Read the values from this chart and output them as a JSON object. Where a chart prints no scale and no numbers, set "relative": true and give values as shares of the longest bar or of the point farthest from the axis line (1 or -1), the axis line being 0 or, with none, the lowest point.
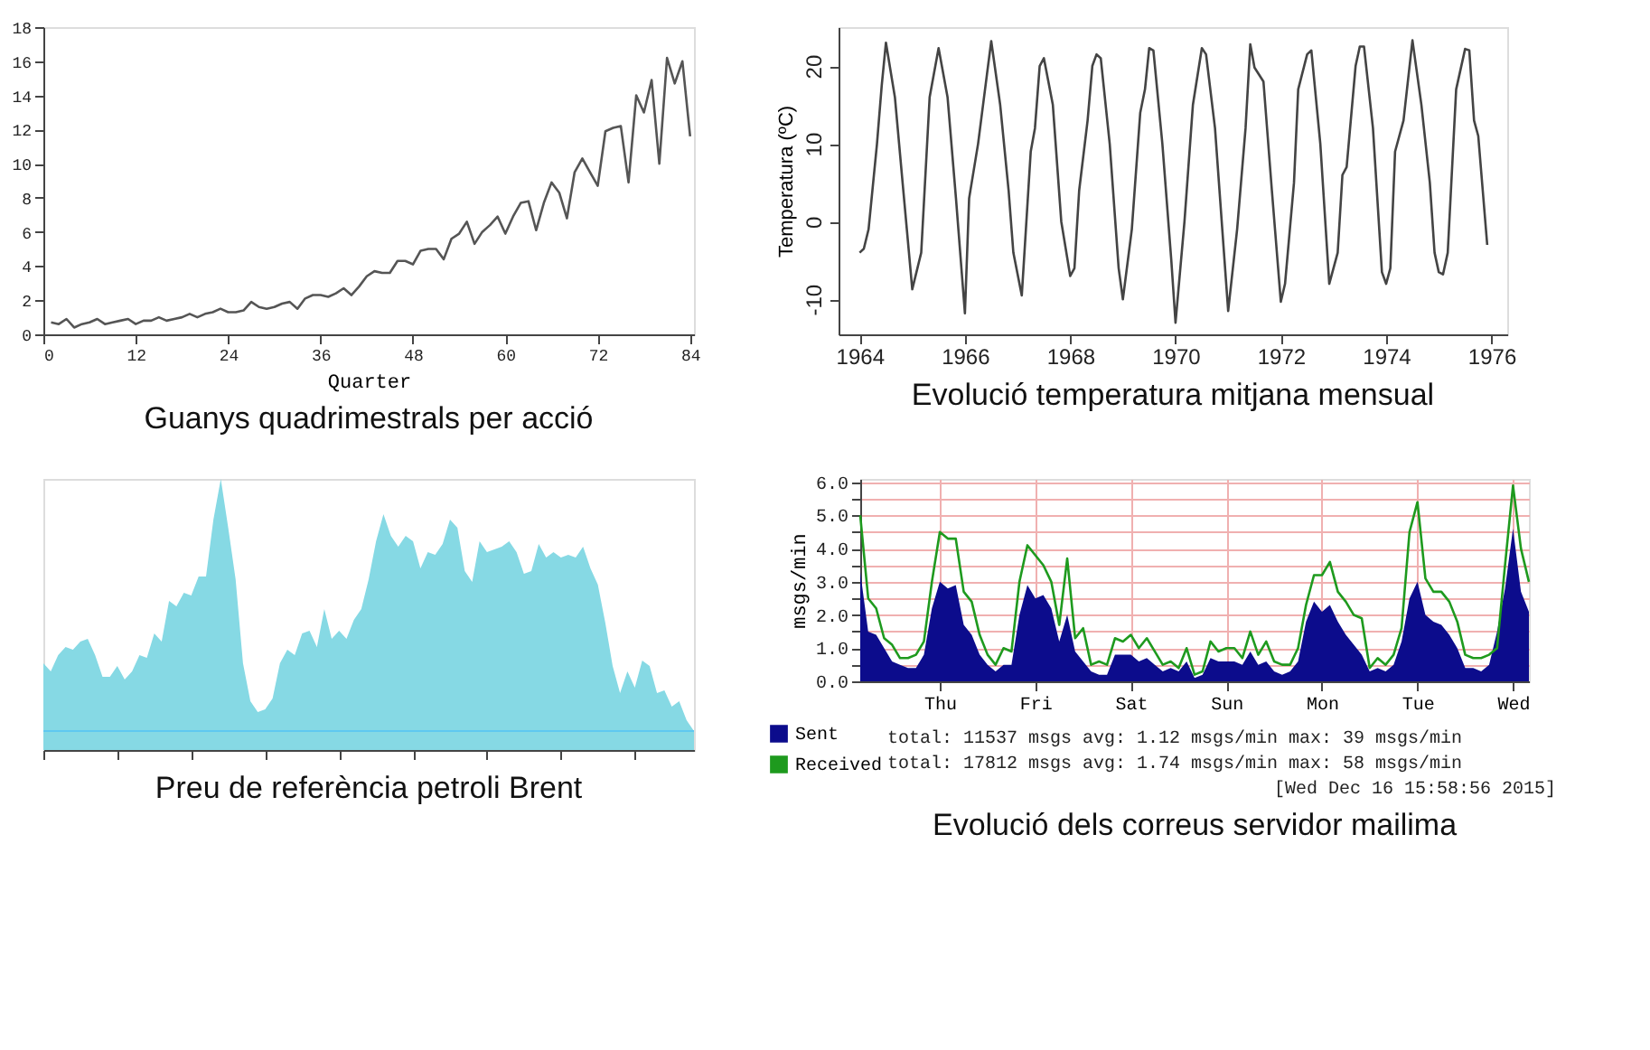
{
  "chart_data": [
    {
      "type": "line",
      "title": "Guanys quadrimestrals per acció",
      "xlabel": "Quarter",
      "x": [
        1,
        2,
        3,
        4,
        5,
        6,
        7,
        8,
        9,
        10,
        11,
        12,
        13,
        14,
        15,
        16,
        17,
        18,
        19,
        20,
        21,
        22,
        23,
        24,
        25,
        26,
        27,
        28,
        29,
        30,
        31,
        32,
        33,
        34,
        35,
        36,
        37,
        38,
        39,
        40,
        41,
        42,
        43,
        44,
        45,
        46,
        47,
        48,
        49,
        50,
        51,
        52,
        53,
        54,
        55,
        56,
        57,
        58,
        59,
        60,
        61,
        62,
        63,
        64,
        65,
        66,
        67,
        68,
        69,
        70,
        71,
        72,
        73,
        74,
        75,
        76,
        77,
        78,
        79,
        80,
        81,
        82,
        83,
        84
      ],
      "series": [
        {
          "color": "#555555",
          "values": [
            0.7,
            0.6,
            0.9,
            0.4,
            0.6,
            0.7,
            0.9,
            0.6,
            0.7,
            0.8,
            0.9,
            0.6,
            0.8,
            0.8,
            1.0,
            0.8,
            0.9,
            1.0,
            1.2,
            1.0,
            1.2,
            1.3,
            1.5,
            1.3,
            1.3,
            1.4,
            1.9,
            1.6,
            1.5,
            1.6,
            1.8,
            1.9,
            1.5,
            2.1,
            2.3,
            2.3,
            2.2,
            2.4,
            2.7,
            2.3,
            2.8,
            3.4,
            3.7,
            3.6,
            3.6,
            4.3,
            4.3,
            4.1,
            4.9,
            5.0,
            5.0,
            4.4,
            5.6,
            5.9,
            6.6,
            5.3,
            6.0,
            6.4,
            6.9,
            5.9,
            6.9,
            7.7,
            7.8,
            6.1,
            7.7,
            8.9,
            8.3,
            6.8,
            9.5,
            10.3,
            9.5,
            8.7,
            11.9,
            12.1,
            12.2,
            8.9,
            14.0,
            13.0,
            14.9,
            10.0,
            16.2,
            14.7,
            16.0,
            11.6
          ]
        }
      ],
      "xlim": [
        0,
        84.5
      ],
      "xticks": [
        0,
        12,
        24,
        36,
        48,
        60,
        72,
        84
      ],
      "ylim": [
        0,
        18
      ],
      "yticks": [
        0,
        2,
        4,
        6,
        8,
        10,
        12,
        14,
        16,
        18
      ]
    },
    {
      "type": "line",
      "title": "Evolució temperatura mitjana mensual",
      "ylabel": "Temperatura (ºC)",
      "x": [
        1964,
        1964.08,
        1964.17,
        1964.33,
        1964.42,
        1964.5,
        1964.67,
        1964.83,
        1965,
        1965.17,
        1965.33,
        1965.5,
        1965.67,
        1965.83,
        1966,
        1966.08,
        1966.25,
        1966.42,
        1966.5,
        1966.67,
        1966.83,
        1966.92,
        1967.08,
        1967.25,
        1967.33,
        1967.42,
        1967.5,
        1967.67,
        1967.83,
        1968,
        1968.08,
        1968.17,
        1968.33,
        1968.42,
        1968.5,
        1968.58,
        1968.75,
        1968.92,
        1969,
        1969.17,
        1969.33,
        1969.42,
        1969.5,
        1969.58,
        1969.75,
        1969.92,
        1970,
        1970.17,
        1970.33,
        1970.5,
        1970.58,
        1970.75,
        1970.92,
        1971,
        1971.17,
        1971.33,
        1971.42,
        1971.5,
        1971.67,
        1971.83,
        1972,
        1972.08,
        1972.25,
        1972.33,
        1972.5,
        1972.58,
        1972.75,
        1972.92,
        1973,
        1973.08,
        1973.17,
        1973.25,
        1973.42,
        1973.5,
        1973.58,
        1973.75,
        1973.92,
        1974,
        1974.08,
        1974.17,
        1974.33,
        1974.5,
        1974.67,
        1974.83,
        1974.92,
        1975,
        1975.08,
        1975.17,
        1975.33,
        1975.5,
        1975.58,
        1975.67,
        1975.75,
        1975.92
      ],
      "series": [
        {
          "color": "#444444",
          "values": [
            -4,
            -3.5,
            -1,
            10,
            17.5,
            23,
            16,
            4,
            -8.7,
            -4,
            16,
            22.3,
            16,
            3,
            -11.8,
            3,
            10,
            19,
            23.2,
            15,
            4,
            -4,
            -9.5,
            9,
            12,
            20,
            21,
            15,
            0,
            -7,
            -6,
            4,
            13,
            20,
            21.5,
            21,
            10,
            -6,
            -10,
            -1,
            14,
            17,
            22.3,
            22,
            10,
            -5,
            -13,
            0,
            15,
            22.3,
            21.5,
            12,
            -4,
            -11.5,
            -1,
            12,
            22.8,
            19.8,
            18,
            4,
            -10.3,
            -8,
            5,
            17,
            21.5,
            22,
            10,
            -8,
            -6,
            -4,
            6,
            7,
            20,
            22.5,
            22.5,
            12,
            -6.5,
            -8,
            -6,
            9,
            13,
            23.3,
            15,
            5,
            -4,
            -6.5,
            -6.8,
            -4,
            17,
            22.2,
            22,
            13,
            11,
            -3
          ]
        }
      ],
      "xlim": [
        1963.6,
        1976.3
      ],
      "xticks": [
        1964,
        1966,
        1968,
        1970,
        1972,
        1974,
        1976
      ],
      "ylim": [
        -14.5,
        25
      ],
      "yticks": [
        -10,
        0,
        10,
        20
      ]
    },
    {
      "type": "area",
      "title": "Preu de referència petroli Brent",
      "relative": true,
      "tick_labels": false,
      "categories": [
        null,
        null,
        null,
        null,
        null,
        null,
        null,
        null,
        null,
        null,
        null,
        null,
        null,
        null,
        null,
        null,
        null,
        null,
        null,
        null,
        null,
        null,
        null,
        null,
        null,
        null,
        null,
        null,
        null,
        null,
        null,
        null,
        null,
        null,
        null,
        null,
        null,
        null,
        null,
        null,
        null,
        null,
        null,
        null,
        null,
        null,
        null,
        null,
        null,
        null,
        null,
        null,
        null,
        null,
        null,
        null,
        null,
        null,
        null,
        null,
        null,
        null,
        null,
        null,
        null,
        null,
        null,
        null,
        null,
        null,
        null,
        null,
        null,
        null,
        null,
        null,
        null,
        null,
        null,
        null,
        null,
        null,
        null,
        null,
        null,
        null,
        null,
        null,
        null
      ],
      "series": [
        {
          "color": "#86d9e4",
          "values": [
            0.32,
            0.29,
            0.35,
            0.38,
            0.37,
            0.4,
            0.41,
            0.35,
            0.27,
            0.27,
            0.31,
            0.26,
            0.29,
            0.35,
            0.34,
            0.43,
            0.4,
            0.55,
            0.53,
            0.58,
            0.57,
            0.64,
            0.64,
            0.85,
            1.0,
            0.82,
            0.63,
            0.32,
            0.18,
            0.14,
            0.15,
            0.19,
            0.32,
            0.37,
            0.35,
            0.43,
            0.44,
            0.38,
            0.52,
            0.41,
            0.44,
            0.41,
            0.48,
            0.52,
            0.63,
            0.77,
            0.87,
            0.79,
            0.75,
            0.79,
            0.77,
            0.67,
            0.73,
            0.72,
            0.76,
            0.85,
            0.82,
            0.66,
            0.62,
            0.77,
            0.73,
            0.74,
            0.75,
            0.77,
            0.73,
            0.65,
            0.66,
            0.76,
            0.71,
            0.73,
            0.71,
            0.72,
            0.71,
            0.75,
            0.67,
            0.61,
            0.47,
            0.31,
            0.21,
            0.29,
            0.23,
            0.33,
            0.31,
            0.21,
            0.22,
            0.16,
            0.18,
            0.11,
            0.07
          ]
        }
      ],
      "ref_lines": [
        {
          "axis": "y",
          "value": 0.07,
          "color": "#5fc8f0"
        }
      ]
    },
    {
      "type": "area",
      "title": "Evolució dels correus servidor mailima",
      "ylabel": "msgs/min",
      "legend": "bottom",
      "grid": true,
      "categories": [
        null,
        null,
        null,
        null,
        null,
        null,
        null,
        null,
        null,
        null,
        "Thu",
        null,
        null,
        null,
        null,
        null,
        null,
        null,
        null,
        null,
        null,
        null,
        "Fri",
        null,
        null,
        null,
        null,
        null,
        null,
        null,
        null,
        null,
        null,
        null,
        "Sat",
        null,
        null,
        null,
        null,
        null,
        null,
        null,
        null,
        null,
        null,
        null,
        "Sun",
        null,
        null,
        null,
        null,
        null,
        null,
        null,
        null,
        null,
        null,
        null,
        "Mon",
        null,
        null,
        null,
        null,
        null,
        null,
        null,
        null,
        null,
        null,
        null,
        "Tue",
        null,
        null,
        null,
        null,
        null,
        null,
        null,
        null,
        null,
        null,
        null,
        "Wed",
        null,
        null
      ],
      "series": [
        {
          "name": "Sent",
          "type": "area",
          "color": "#0c0c8c",
          "values": [
            3.3,
            1.5,
            1.4,
            1.0,
            0.6,
            0.5,
            0.4,
            0.4,
            0.8,
            2.2,
            3.0,
            2.8,
            2.9,
            1.7,
            1.4,
            0.8,
            0.5,
            0.3,
            0.5,
            0.5,
            2.0,
            2.9,
            2.5,
            2.6,
            2.2,
            1.2,
            2.0,
            0.9,
            0.6,
            0.3,
            0.2,
            0.2,
            0.8,
            0.8,
            0.8,
            0.6,
            0.7,
            0.5,
            0.3,
            0.4,
            0.3,
            0.6,
            0.1,
            0.2,
            0.7,
            0.6,
            0.6,
            0.6,
            0.5,
            0.9,
            0.5,
            0.6,
            0.3,
            0.2,
            0.3,
            0.6,
            1.8,
            2.4,
            2.1,
            2.3,
            1.8,
            1.4,
            1.1,
            0.8,
            0.3,
            0.4,
            0.3,
            0.5,
            1.2,
            2.5,
            3.0,
            2.0,
            1.8,
            1.7,
            1.4,
            1.0,
            0.4,
            0.4,
            0.3,
            0.5,
            1.5,
            2.8,
            4.6,
            2.7,
            2.1
          ]
        },
        {
          "name": "Received",
          "type": "line",
          "color": "#1e9a1e",
          "values": [
            5.0,
            2.5,
            2.2,
            1.3,
            1.1,
            0.7,
            0.7,
            0.8,
            1.2,
            3.0,
            4.5,
            4.3,
            4.3,
            2.7,
            2.4,
            1.4,
            0.8,
            0.5,
            1.0,
            0.9,
            3.0,
            4.1,
            3.8,
            3.5,
            3.0,
            1.7,
            3.7,
            1.3,
            1.6,
            0.5,
            0.6,
            0.5,
            1.3,
            1.2,
            1.4,
            1.0,
            1.3,
            0.9,
            0.5,
            0.6,
            0.4,
            1.0,
            0.2,
            0.3,
            1.2,
            0.9,
            1.0,
            1.0,
            0.7,
            1.5,
            0.8,
            1.2,
            0.6,
            0.5,
            0.5,
            1.0,
            2.3,
            3.2,
            3.2,
            3.6,
            2.7,
            2.4,
            2.0,
            1.9,
            0.4,
            0.7,
            0.5,
            0.8,
            1.6,
            4.5,
            5.4,
            3.1,
            2.7,
            2.7,
            2.4,
            1.8,
            0.8,
            0.7,
            0.7,
            0.8,
            1.0,
            3.5,
            5.9,
            4.0,
            3.0
          ]
        }
      ],
      "ylim": [
        0,
        6.1
      ],
      "yticks": [
        {
          "value": 0,
          "label": "0.0"
        },
        {
          "value": 0.5,
          "label": null
        },
        {
          "value": 1,
          "label": "1.0"
        },
        {
          "value": 1.5,
          "label": null
        },
        {
          "value": 2,
          "label": "2.0"
        },
        {
          "value": 2.5,
          "label": null
        },
        {
          "value": 3,
          "label": "3.0"
        },
        {
          "value": 3.5,
          "label": null
        },
        {
          "value": 4,
          "label": "4.0"
        },
        {
          "value": 4.5,
          "label": null
        },
        {
          "value": 5,
          "label": "5.0"
        },
        {
          "value": 5.5,
          "label": null
        },
        {
          "value": 6,
          "label": "6.0"
        }
      ],
      "annotations": [
        "total:  11537 msgs  avg: 1.12 msgs/min  max: 39 msgs/min",
        "total:  17812 msgs  avg: 1.74 msgs/min  max: 58 msgs/min",
        "[Wed Dec 16 15:58:56 2015]"
      ]
    }
  ]
}
